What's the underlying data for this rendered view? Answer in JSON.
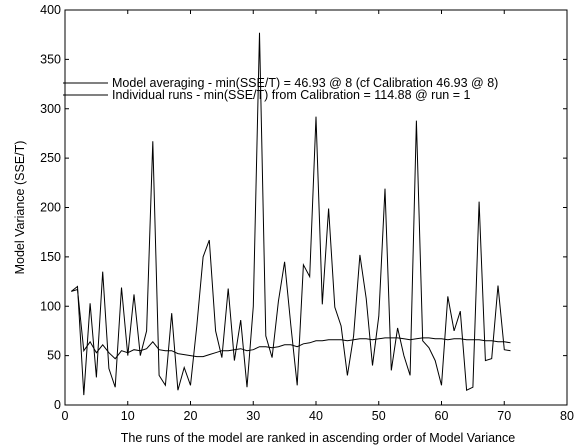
{
  "chart_data": {
    "type": "line",
    "xlabel": "The runs of the model are ranked in ascending order of Model Variance",
    "ylabel": "Model Variance (SSE/T)",
    "xlim": [
      0,
      80
    ],
    "ylim": [
      0,
      400
    ],
    "x_ticks": [
      0,
      10,
      20,
      30,
      40,
      50,
      60,
      70,
      80
    ],
    "y_ticks": [
      0,
      50,
      100,
      150,
      200,
      250,
      300,
      350,
      400
    ],
    "grid": false,
    "legend_position": "upper-left",
    "series": [
      {
        "name": "Individual runs - min(SSE/T) from Calibration = 114.88 @ run = 1",
        "color": "#000000",
        "x": [
          1,
          2,
          3,
          4,
          5,
          6,
          7,
          8,
          9,
          10,
          11,
          12,
          13,
          14,
          15,
          16,
          17,
          18,
          19,
          20,
          21,
          22,
          23,
          24,
          25,
          26,
          27,
          28,
          29,
          30,
          31,
          32,
          33,
          34,
          35,
          36,
          37,
          38,
          39,
          40,
          41,
          42,
          43,
          44,
          45,
          46,
          47,
          48,
          49,
          50,
          51,
          52,
          53,
          54,
          55,
          56,
          57,
          58,
          59,
          60,
          61,
          62,
          63,
          64,
          65,
          66,
          67,
          68,
          69,
          70,
          71
        ],
        "values": [
          115,
          120,
          10,
          103,
          28,
          135,
          37,
          18,
          119,
          50,
          112,
          50,
          75,
          267,
          30,
          20,
          93,
          15,
          38,
          20,
          80,
          150,
          167,
          75,
          48,
          118,
          45,
          86,
          18,
          100,
          377,
          70,
          48,
          105,
          145,
          80,
          20,
          142,
          130,
          292,
          102,
          199,
          99,
          80,
          30,
          70,
          152,
          108,
          40,
          90,
          219,
          35,
          78,
          50,
          30,
          288,
          65,
          58,
          45,
          20,
          110,
          75,
          95,
          15,
          18,
          206,
          45,
          47,
          121,
          56,
          55
        ]
      },
      {
        "name": "Model averaging - min(SSE/T) = 46.93 @ 8 (cf Calibration 46.93 @ 8)",
        "color": "#000000",
        "x": [
          1,
          2,
          3,
          4,
          5,
          6,
          7,
          8,
          9,
          10,
          11,
          12,
          13,
          14,
          15,
          16,
          17,
          18,
          19,
          20,
          21,
          22,
          23,
          24,
          25,
          26,
          27,
          28,
          29,
          30,
          31,
          32,
          33,
          34,
          35,
          36,
          37,
          38,
          39,
          40,
          41,
          42,
          43,
          44,
          45,
          46,
          47,
          48,
          49,
          50,
          51,
          52,
          53,
          54,
          55,
          56,
          57,
          58,
          59,
          60,
          61,
          62,
          63,
          64,
          65,
          66,
          67,
          68,
          69,
          70,
          71
        ],
        "values": [
          115,
          117,
          55,
          64,
          53,
          61,
          53,
          46.93,
          55,
          53,
          56,
          55,
          57,
          64,
          56,
          55,
          55,
          52,
          51,
          50,
          49,
          49,
          51,
          53,
          55,
          55,
          56,
          57,
          55,
          56,
          59,
          59,
          58,
          59,
          61,
          61,
          59,
          62,
          63,
          65,
          65,
          66,
          66,
          66,
          65,
          66,
          67,
          67,
          66,
          67,
          68,
          68,
          68,
          67,
          66,
          67,
          68,
          68,
          67,
          67,
          66,
          67,
          67,
          66,
          66,
          66,
          65,
          65,
          64,
          64,
          63
        ]
      }
    ]
  }
}
